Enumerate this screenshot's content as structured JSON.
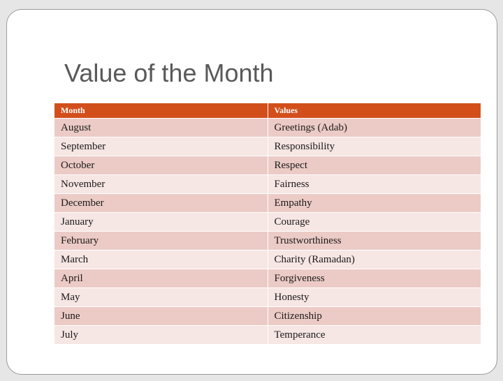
{
  "slide": {
    "title": "Value of the Month",
    "table": {
      "headers": [
        "Month",
        "Values"
      ],
      "rows": [
        [
          "August",
          "Greetings (Adab)"
        ],
        [
          "September",
          "Responsibility"
        ],
        [
          "October",
          "Respect"
        ],
        [
          "November",
          "Fairness"
        ],
        [
          "December",
          "Empathy"
        ],
        [
          "January",
          "Courage"
        ],
        [
          "February",
          "Trustworthiness"
        ],
        [
          "March",
          "Charity (Ramadan)"
        ],
        [
          "April",
          "Forgiveness"
        ],
        [
          "May",
          "Honesty"
        ],
        [
          "June",
          "Citizenship"
        ],
        [
          "July",
          "Temperance"
        ]
      ]
    }
  },
  "colors": {
    "header_fill": "#d24f1c",
    "row_fill_dark": "#eccbc6",
    "row_fill_light": "#f6e6e4",
    "title_text": "#595959"
  }
}
